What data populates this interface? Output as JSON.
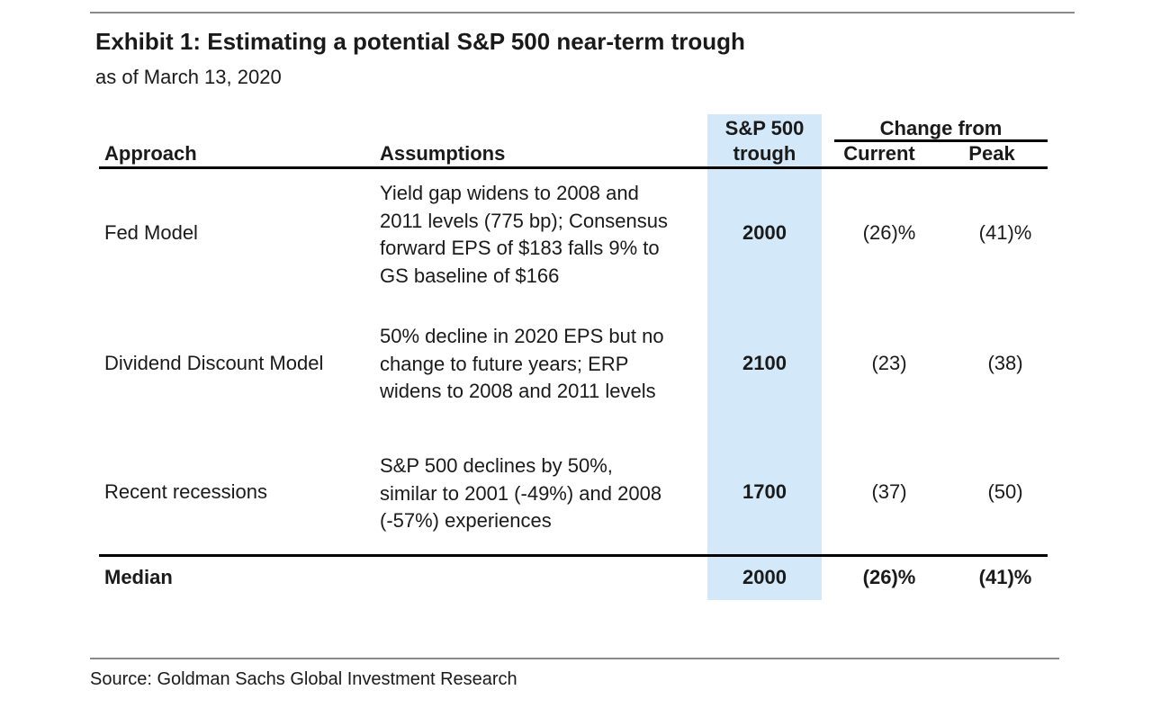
{
  "exhibit": {
    "title": "Exhibit 1: Estimating a potential S&P 500 near-term trough",
    "subtitle": "as of March 13, 2020"
  },
  "table": {
    "headers": {
      "approach": "Approach",
      "assumptions": "Assumptions",
      "trough_line1": "S&P 500",
      "trough_line2": "trough",
      "change_group": "Change from",
      "current": "Current",
      "peak": "Peak"
    },
    "rows": [
      {
        "approach": "Fed Model",
        "assumptions": [
          "Yield gap widens to 2008 and",
          "2011 levels (775 bp); Consensus",
          "forward EPS of $183 falls 9% to",
          "GS baseline of $166"
        ],
        "trough": "2000",
        "current": "(26)%",
        "peak": "(41)%"
      },
      {
        "approach": "Dividend Discount Model",
        "assumptions": [
          "50% decline in 2020 EPS but no",
          "change to future years; ERP",
          "widens to 2008 and 2011 levels"
        ],
        "trough": "2100",
        "current": "(23)",
        "peak": "(38)"
      },
      {
        "approach": "Recent recessions",
        "assumptions": [
          "S&P 500 declines by 50%,",
          "similar to 2001 (-49%) and 2008",
          "(-57%) experiences"
        ],
        "trough": "1700",
        "current": "(37)",
        "peak": "(50)"
      }
    ],
    "median": {
      "label": "Median",
      "trough": "2000",
      "current": "(26)%",
      "peak": "(41)%"
    }
  },
  "source": "Source: Goldman Sachs Global Investment Research",
  "colors": {
    "highlight": "#d3e8f8",
    "rule": "#8a8a8a"
  }
}
